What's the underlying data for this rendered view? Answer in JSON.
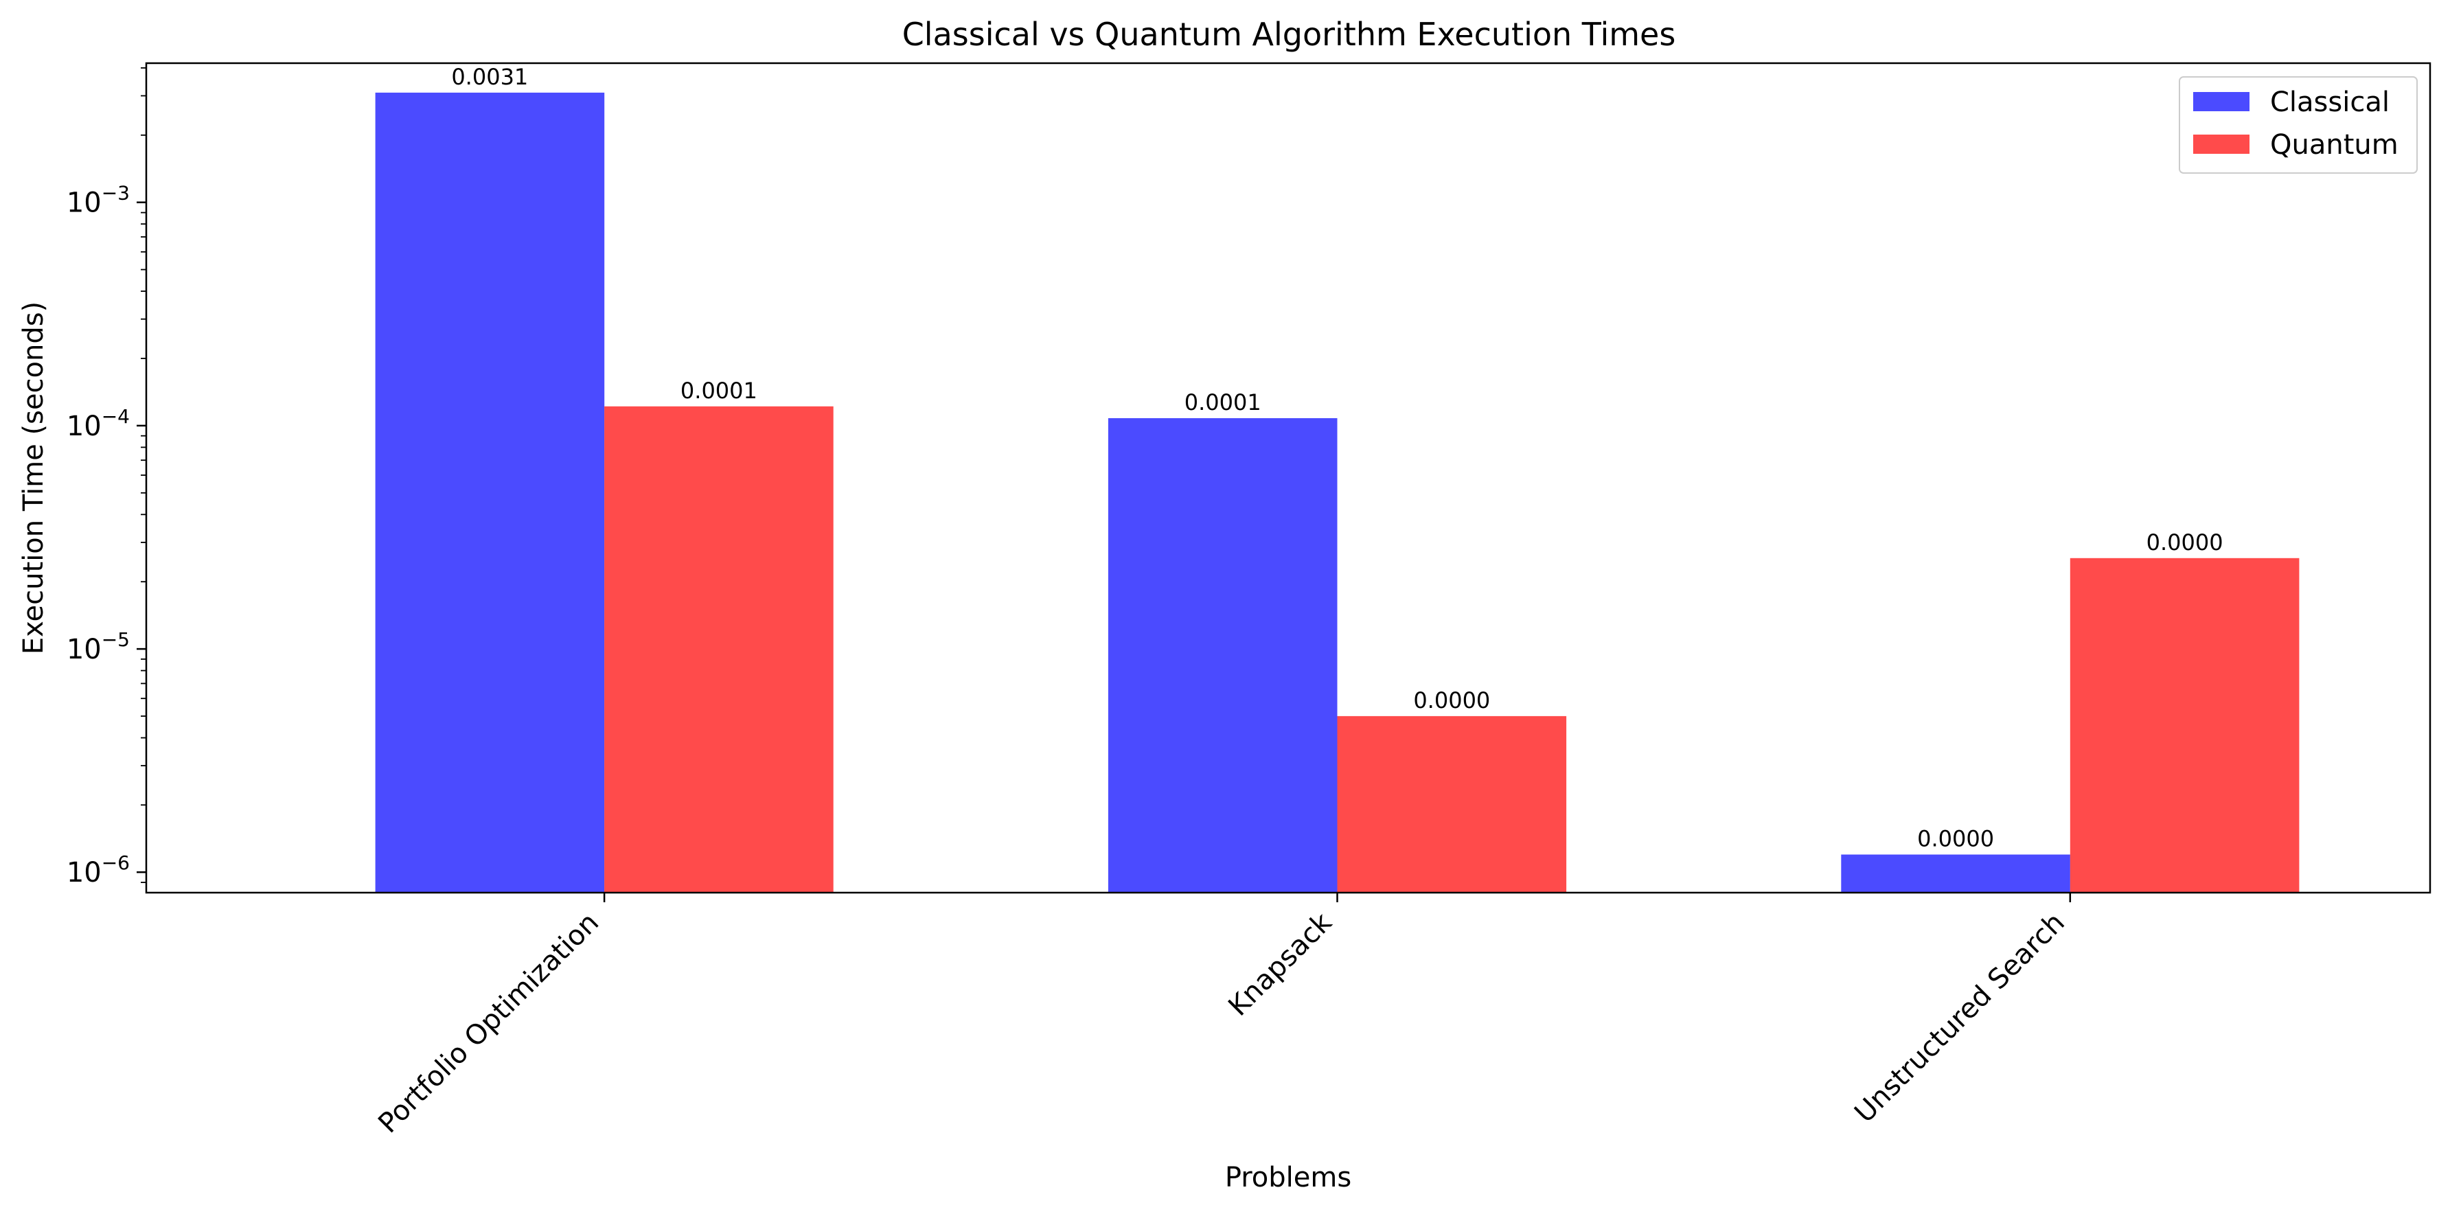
{
  "chart_data": {
    "type": "bar",
    "title": "Classical vs Quantum Algorithm Execution Times",
    "xlabel": "Problems",
    "ylabel": "Execution Time (seconds)",
    "yscale": "log",
    "ylim": [
      8.1e-07,
      0.0042
    ],
    "yticks": [
      {
        "value": 1e-06,
        "base": "10",
        "exp": "−6"
      },
      {
        "value": 1e-05,
        "base": "10",
        "exp": "−5"
      },
      {
        "value": 0.0001,
        "base": "10",
        "exp": "−4"
      },
      {
        "value": 0.001,
        "base": "10",
        "exp": "−3"
      }
    ],
    "categories": [
      "Portfolio Optimization",
      "Knapsack",
      "Unstructured Search"
    ],
    "series": [
      {
        "name": "Classical",
        "color": "#4b4bff",
        "values": [
          0.0031,
          0.000108,
          1.2e-06
        ],
        "labels": [
          "0.0031",
          "0.0001",
          "0.0000"
        ]
      },
      {
        "name": "Quantum",
        "color": "#ff4b4b",
        "values": [
          0.000122,
          5e-06,
          2.55e-05
        ],
        "labels": [
          "0.0001",
          "0.0000",
          "0.0000"
        ]
      }
    ],
    "legend": "top-right",
    "grid": false
  }
}
